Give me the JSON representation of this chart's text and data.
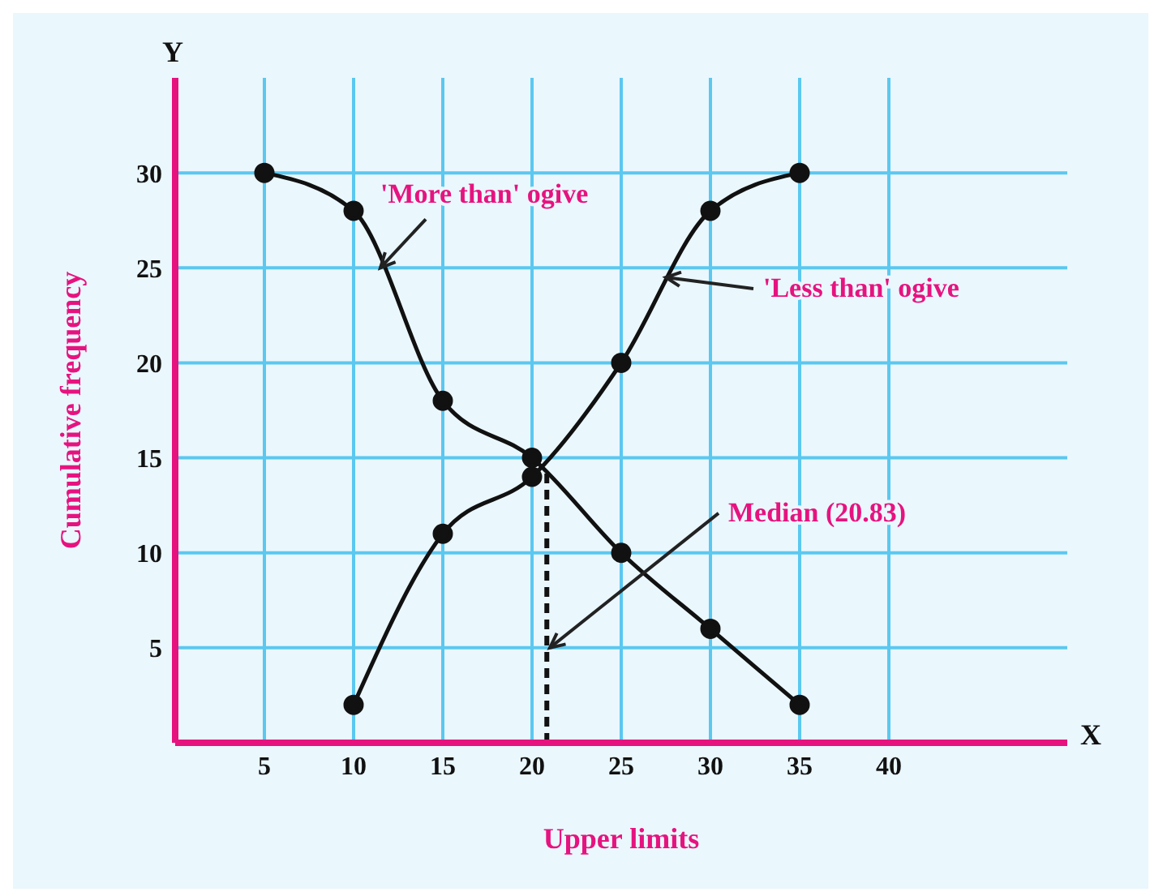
{
  "chart_data": {
    "type": "line",
    "xlabel": "Upper limits",
    "ylabel": "Cumulative frequency",
    "xlim": [
      0,
      50
    ],
    "ylim": [
      0,
      35
    ],
    "xticks": [
      5,
      10,
      15,
      20,
      25,
      30,
      35,
      40
    ],
    "yticks": [
      5,
      10,
      15,
      20,
      25,
      30
    ],
    "grid": true,
    "marker": "circle",
    "line_style": "solid",
    "series": [
      {
        "color": "#111111",
        "x": [
          10,
          15,
          20,
          25,
          30,
          35
        ],
        "values": [
          2,
          11,
          14,
          20,
          28,
          30
        ]
      },
      {
        "color": "#111111",
        "x": [
          5,
          10,
          15,
          20,
          25,
          30,
          35
        ],
        "values": [
          30,
          28,
          18,
          15,
          10,
          6,
          2
        ]
      }
    ],
    "ref_lines": [
      {
        "axis": "x",
        "value": 20.83,
        "line_style": "dashed",
        "color": "#111111"
      }
    ],
    "annotations": [
      {
        "text": "'More than' ogive",
        "x": 11.5,
        "y": 25
      },
      {
        "text": "'Less than' ogive",
        "x": 27.5,
        "y": 24.5
      },
      {
        "text": "Median (20.83)",
        "x": 21,
        "y": 5
      },
      "X",
      "Y"
    ]
  }
}
